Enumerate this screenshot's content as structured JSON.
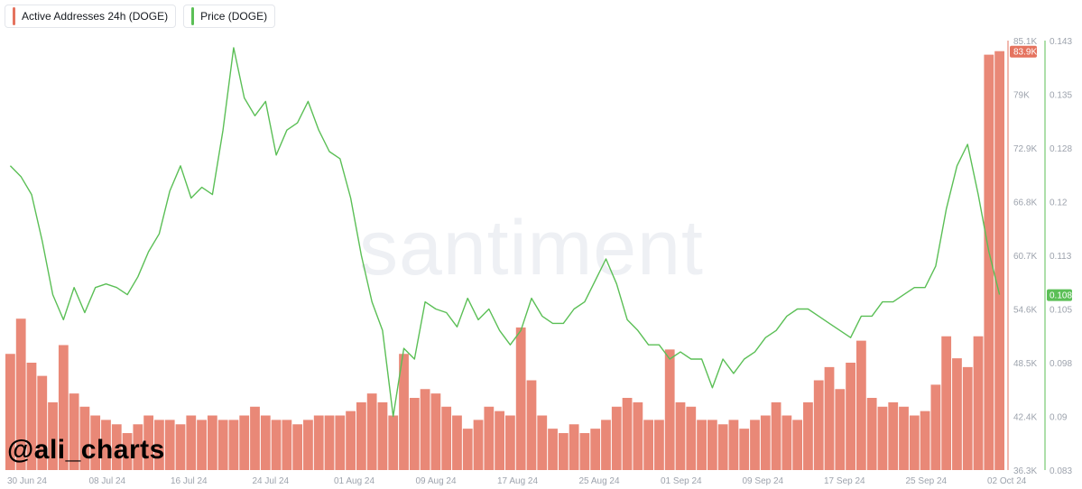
{
  "legend": {
    "items": [
      {
        "label": "Active Addresses 24h (DOGE)",
        "color": "#e5735f"
      },
      {
        "label": "Price (DOGE)",
        "color": "#5bbf56"
      }
    ]
  },
  "watermark": "santiment",
  "author_tag": "@ali_charts",
  "chart_data": {
    "type": "bar+line",
    "x_tick_labels": [
      "30 Jun 24",
      "08 Jul 24",
      "16 Jul 24",
      "24 Jul 24",
      "01 Aug 24",
      "09 Aug 24",
      "17 Aug 24",
      "25 Aug 24",
      "01 Sep 24",
      "09 Sep 24",
      "17 Sep 24",
      "25 Sep 24",
      "02 Oct 24"
    ],
    "left_axis": {
      "series": "Active Addresses 24h (DOGE)",
      "range": [
        36.3,
        85.1
      ],
      "unit": "K",
      "tick_labels": [
        "85.1K",
        "79K",
        "72.9K",
        "66.8K",
        "60.7K",
        "54.6K",
        "48.5K",
        "42.4K",
        "36.3K"
      ],
      "last_value_label": "83.9K",
      "color": "#e5735f"
    },
    "right_axis": {
      "series": "Price (DOGE)",
      "range": [
        0.083,
        0.143
      ],
      "tick_labels": [
        "0.143",
        "0.135",
        "0.128",
        "0.12",
        "0.113",
        "0.105",
        "0.098",
        "0.09",
        "0.083"
      ],
      "last_value_label": "0.108",
      "color": "#5bbf56"
    },
    "x_range": [
      "2024-06-30",
      "2024-10-02"
    ],
    "series": [
      {
        "name": "Active Addresses 24h (DOGE)",
        "type": "bar",
        "unit": "K",
        "points": [
          [
            "2024-06-30",
            49.5
          ],
          [
            "2024-07-01",
            53.5
          ],
          [
            "2024-07-02",
            48.5
          ],
          [
            "2024-07-03",
            47.0
          ],
          [
            "2024-07-04",
            44.0
          ],
          [
            "2024-07-05",
            50.5
          ],
          [
            "2024-07-06",
            45.0
          ],
          [
            "2024-07-07",
            43.5
          ],
          [
            "2024-07-08",
            42.5
          ],
          [
            "2024-07-09",
            42.0
          ],
          [
            "2024-07-10",
            41.5
          ],
          [
            "2024-07-11",
            40.5
          ],
          [
            "2024-07-12",
            41.5
          ],
          [
            "2024-07-13",
            42.5
          ],
          [
            "2024-07-14",
            42.0
          ],
          [
            "2024-07-15",
            42.0
          ],
          [
            "2024-07-16",
            41.5
          ],
          [
            "2024-07-17",
            42.5
          ],
          [
            "2024-07-18",
            42.0
          ],
          [
            "2024-07-19",
            42.5
          ],
          [
            "2024-07-20",
            42.0
          ],
          [
            "2024-07-21",
            42.0
          ],
          [
            "2024-07-22",
            42.5
          ],
          [
            "2024-07-23",
            43.5
          ],
          [
            "2024-07-24",
            42.5
          ],
          [
            "2024-07-25",
            42.0
          ],
          [
            "2024-07-26",
            42.0
          ],
          [
            "2024-07-27",
            41.5
          ],
          [
            "2024-07-28",
            42.0
          ],
          [
            "2024-07-29",
            42.5
          ],
          [
            "2024-07-30",
            42.5
          ],
          [
            "2024-07-31",
            42.5
          ],
          [
            "2024-08-01",
            43.0
          ],
          [
            "2024-08-02",
            44.0
          ],
          [
            "2024-08-03",
            45.0
          ],
          [
            "2024-08-04",
            44.0
          ],
          [
            "2024-08-05",
            42.5
          ],
          [
            "2024-08-06",
            49.5
          ],
          [
            "2024-08-07",
            44.5
          ],
          [
            "2024-08-08",
            45.5
          ],
          [
            "2024-08-09",
            45.0
          ],
          [
            "2024-08-10",
            43.5
          ],
          [
            "2024-08-11",
            42.5
          ],
          [
            "2024-08-12",
            41.0
          ],
          [
            "2024-08-13",
            42.0
          ],
          [
            "2024-08-14",
            43.5
          ],
          [
            "2024-08-15",
            43.0
          ],
          [
            "2024-08-16",
            42.5
          ],
          [
            "2024-08-17",
            52.5
          ],
          [
            "2024-08-18",
            46.5
          ],
          [
            "2024-08-19",
            42.5
          ],
          [
            "2024-08-20",
            41.0
          ],
          [
            "2024-08-21",
            40.5
          ],
          [
            "2024-08-22",
            41.5
          ],
          [
            "2024-08-23",
            40.5
          ],
          [
            "2024-08-24",
            41.0
          ],
          [
            "2024-08-25",
            42.0
          ],
          [
            "2024-08-26",
            43.5
          ],
          [
            "2024-08-27",
            44.5
          ],
          [
            "2024-08-28",
            44.0
          ],
          [
            "2024-08-29",
            42.0
          ],
          [
            "2024-08-30",
            42.0
          ],
          [
            "2024-08-31",
            50.0
          ],
          [
            "2024-09-01",
            44.0
          ],
          [
            "2024-09-02",
            43.5
          ],
          [
            "2024-09-03",
            42.0
          ],
          [
            "2024-09-04",
            42.0
          ],
          [
            "2024-09-05",
            41.5
          ],
          [
            "2024-09-06",
            42.0
          ],
          [
            "2024-09-07",
            41.0
          ],
          [
            "2024-09-08",
            42.0
          ],
          [
            "2024-09-09",
            42.5
          ],
          [
            "2024-09-10",
            44.0
          ],
          [
            "2024-09-11",
            42.5
          ],
          [
            "2024-09-12",
            42.0
          ],
          [
            "2024-09-13",
            44.0
          ],
          [
            "2024-09-14",
            46.5
          ],
          [
            "2024-09-15",
            48.0
          ],
          [
            "2024-09-16",
            45.5
          ],
          [
            "2024-09-17",
            48.5
          ],
          [
            "2024-09-18",
            51.0
          ],
          [
            "2024-09-19",
            44.5
          ],
          [
            "2024-09-20",
            43.5
          ],
          [
            "2024-09-21",
            44.0
          ],
          [
            "2024-09-22",
            43.5
          ],
          [
            "2024-09-23",
            42.5
          ],
          [
            "2024-09-24",
            43.0
          ],
          [
            "2024-09-25",
            46.0
          ],
          [
            "2024-09-26",
            51.5
          ],
          [
            "2024-09-27",
            49.0
          ],
          [
            "2024-09-28",
            48.0
          ],
          [
            "2024-09-29",
            51.5
          ],
          [
            "2024-09-30",
            83.5
          ],
          [
            "2024-10-01",
            83.9
          ]
        ]
      },
      {
        "name": "Price (DOGE)",
        "type": "line",
        "points": [
          [
            "2024-06-30",
            0.1255
          ],
          [
            "2024-07-01",
            0.124
          ],
          [
            "2024-07-02",
            0.1215
          ],
          [
            "2024-07-03",
            0.115
          ],
          [
            "2024-07-04",
            0.1075
          ],
          [
            "2024-07-05",
            0.104
          ],
          [
            "2024-07-06",
            0.1085
          ],
          [
            "2024-07-07",
            0.105
          ],
          [
            "2024-07-08",
            0.1085
          ],
          [
            "2024-07-09",
            0.109
          ],
          [
            "2024-07-10",
            0.1085
          ],
          [
            "2024-07-11",
            0.1075
          ],
          [
            "2024-07-12",
            0.11
          ],
          [
            "2024-07-13",
            0.1135
          ],
          [
            "2024-07-14",
            0.116
          ],
          [
            "2024-07-15",
            0.122
          ],
          [
            "2024-07-16",
            0.1255
          ],
          [
            "2024-07-17",
            0.121
          ],
          [
            "2024-07-18",
            0.1225
          ],
          [
            "2024-07-19",
            0.1215
          ],
          [
            "2024-07-20",
            0.1305
          ],
          [
            "2024-07-21",
            0.142
          ],
          [
            "2024-07-22",
            0.135
          ],
          [
            "2024-07-23",
            0.1325
          ],
          [
            "2024-07-24",
            0.1345
          ],
          [
            "2024-07-25",
            0.127
          ],
          [
            "2024-07-26",
            0.1305
          ],
          [
            "2024-07-27",
            0.1315
          ],
          [
            "2024-07-28",
            0.1345
          ],
          [
            "2024-07-29",
            0.1305
          ],
          [
            "2024-07-30",
            0.1275
          ],
          [
            "2024-07-31",
            0.1265
          ],
          [
            "2024-08-01",
            0.121
          ],
          [
            "2024-08-02",
            0.113
          ],
          [
            "2024-08-03",
            0.1065
          ],
          [
            "2024-08-04",
            0.1025
          ],
          [
            "2024-08-05",
            0.0905
          ],
          [
            "2024-08-06",
            0.1
          ],
          [
            "2024-08-07",
            0.0985
          ],
          [
            "2024-08-08",
            0.1065
          ],
          [
            "2024-08-09",
            0.1055
          ],
          [
            "2024-08-10",
            0.105
          ],
          [
            "2024-08-11",
            0.103
          ],
          [
            "2024-08-12",
            0.107
          ],
          [
            "2024-08-13",
            0.104
          ],
          [
            "2024-08-14",
            0.1055
          ],
          [
            "2024-08-15",
            0.1025
          ],
          [
            "2024-08-16",
            0.1005
          ],
          [
            "2024-08-17",
            0.1025
          ],
          [
            "2024-08-18",
            0.107
          ],
          [
            "2024-08-19",
            0.1045
          ],
          [
            "2024-08-20",
            0.1035
          ],
          [
            "2024-08-21",
            0.1035
          ],
          [
            "2024-08-22",
            0.1055
          ],
          [
            "2024-08-23",
            0.1065
          ],
          [
            "2024-08-24",
            0.1095
          ],
          [
            "2024-08-25",
            0.1125
          ],
          [
            "2024-08-26",
            0.109
          ],
          [
            "2024-08-27",
            0.104
          ],
          [
            "2024-08-28",
            0.1025
          ],
          [
            "2024-08-29",
            0.1005
          ],
          [
            "2024-08-30",
            0.1005
          ],
          [
            "2024-08-31",
            0.0985
          ],
          [
            "2024-09-01",
            0.0995
          ],
          [
            "2024-09-02",
            0.0985
          ],
          [
            "2024-09-03",
            0.0985
          ],
          [
            "2024-09-04",
            0.0945
          ],
          [
            "2024-09-05",
            0.0985
          ],
          [
            "2024-09-06",
            0.0965
          ],
          [
            "2024-09-07",
            0.0985
          ],
          [
            "2024-09-08",
            0.0995
          ],
          [
            "2024-09-09",
            0.1015
          ],
          [
            "2024-09-10",
            0.1025
          ],
          [
            "2024-09-11",
            0.1045
          ],
          [
            "2024-09-12",
            0.1055
          ],
          [
            "2024-09-13",
            0.1055
          ],
          [
            "2024-09-14",
            0.1045
          ],
          [
            "2024-09-15",
            0.1035
          ],
          [
            "2024-09-16",
            0.1025
          ],
          [
            "2024-09-17",
            0.1015
          ],
          [
            "2024-09-18",
            0.1045
          ],
          [
            "2024-09-19",
            0.1045
          ],
          [
            "2024-09-20",
            0.1065
          ],
          [
            "2024-09-21",
            0.1065
          ],
          [
            "2024-09-22",
            0.1075
          ],
          [
            "2024-09-23",
            0.1085
          ],
          [
            "2024-09-24",
            0.1085
          ],
          [
            "2024-09-25",
            0.1115
          ],
          [
            "2024-09-26",
            0.1195
          ],
          [
            "2024-09-27",
            0.1255
          ],
          [
            "2024-09-28",
            0.1285
          ],
          [
            "2024-09-29",
            0.1215
          ],
          [
            "2024-09-30",
            0.1135
          ],
          [
            "2024-10-01",
            0.1075
          ]
        ]
      }
    ],
    "grid": false,
    "legend_position": "top-left"
  }
}
